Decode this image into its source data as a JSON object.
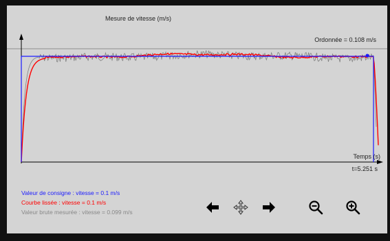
{
  "chart": {
    "title": "Mesure de vitesse (m/s)",
    "ordinate_readout": "Ordonnée = 0.108 m/s",
    "xlabel": "Temps (s)",
    "time_readout": "t=5.251 s"
  },
  "legend": {
    "setpoint": "Valeur de consigne : vitesse = 0.1 m/s",
    "smoothed": "Courbe lissée : vitesse = 0.1 m/s",
    "raw": "Valeur brute mesurée : vitesse = 0.099 m/s"
  },
  "colors": {
    "setpoint": "#1a1aff",
    "smoothed": "#ff0000",
    "raw": "#808080",
    "background": "#d4d4d4"
  },
  "controls": {
    "icons": [
      "arrow-left-icon",
      "pan-move-icon",
      "arrow-right-icon",
      "zoom-out-icon",
      "zoom-in-icon"
    ]
  },
  "chart_data": {
    "type": "line",
    "x_unit": "s",
    "y_unit": "m/s",
    "x_end": 5.251,
    "series": [
      {
        "name": "Valeur de consigne",
        "step_value": 0.1,
        "t_on": 0,
        "t_off": 5.251
      },
      {
        "name": "Courbe lissée",
        "steady_value": 0.1
      },
      {
        "name": "Valeur brute mesurée",
        "steady_value": 0.099
      }
    ]
  }
}
